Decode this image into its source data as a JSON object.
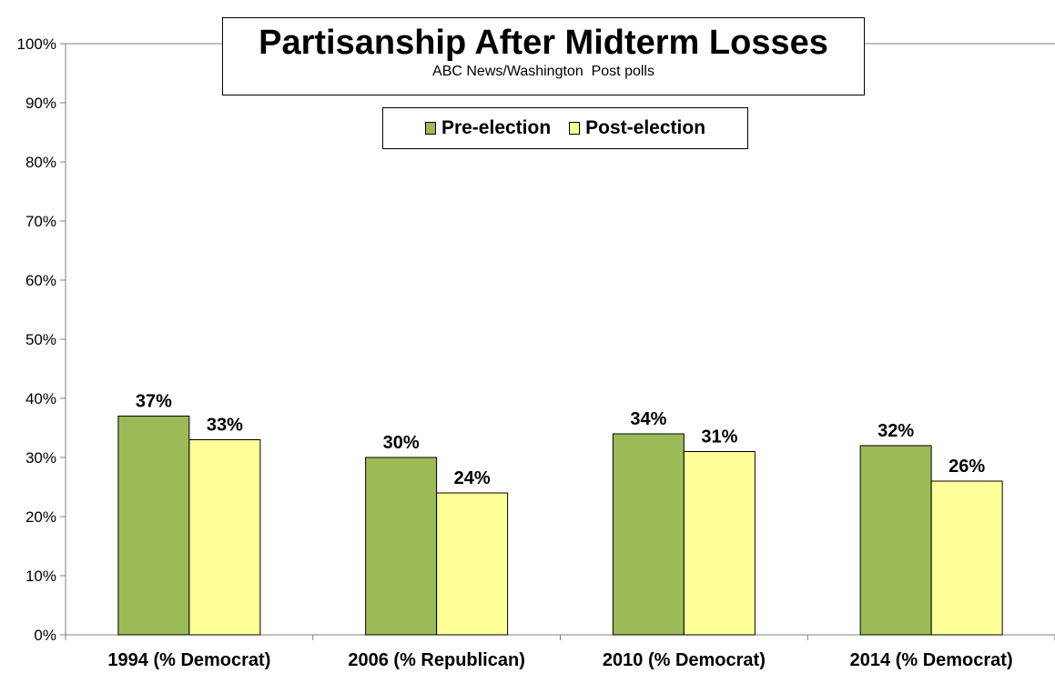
{
  "chart_data": {
    "type": "bar",
    "title": "Partisanship After Midterm Losses",
    "subtitle": "ABC News/Washington  Post polls",
    "categories": [
      "1994 (% Democrat)",
      "2006 (% Republican)",
      "2010 (% Democrat)",
      "2014 (% Democrat)"
    ],
    "series": [
      {
        "name": "Pre-election",
        "values": [
          37,
          30,
          34,
          32
        ],
        "color": "#9BBB59"
      },
      {
        "name": "Post-election",
        "values": [
          33,
          24,
          31,
          26
        ],
        "color": "#FFFF99"
      }
    ],
    "value_suffix": "%",
    "ylim": [
      0,
      100
    ],
    "yticks": [
      0,
      10,
      20,
      30,
      40,
      50,
      60,
      70,
      80,
      90,
      100
    ],
    "ytick_labels": [
      "0%",
      "10%",
      "20%",
      "30%",
      "40%",
      "50%",
      "60%",
      "70%",
      "80%",
      "90%",
      "100%"
    ],
    "grid": false,
    "legend_position": "top-center",
    "xlabel": "",
    "ylabel": ""
  }
}
